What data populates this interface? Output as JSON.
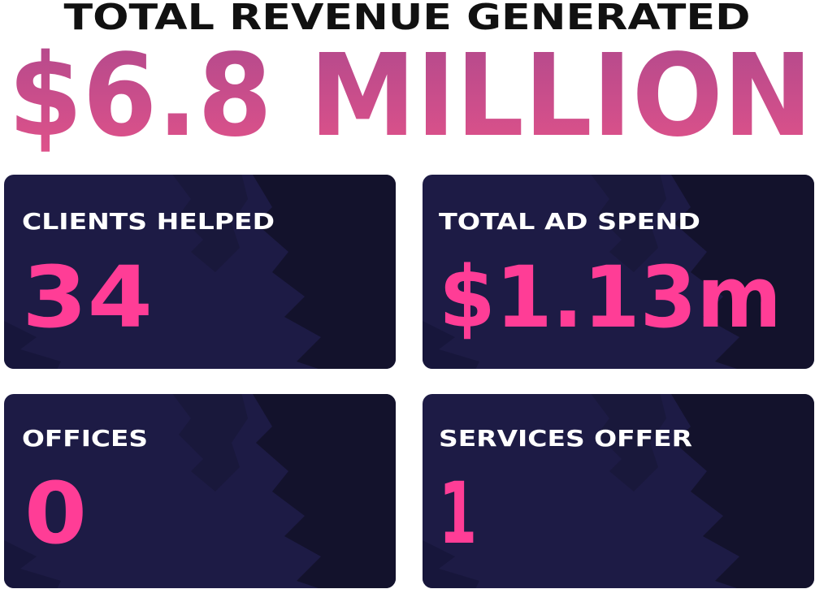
{
  "header": {
    "title": "TOTAL REVENUE GENERATED",
    "amount": "$6.8 MILLION"
  },
  "cards": [
    {
      "label": "CLIENTS HELPED",
      "value": "34"
    },
    {
      "label": "TOTAL AD SPEND",
      "value": "$1.13m"
    },
    {
      "label": "OFFICES",
      "value": "0"
    },
    {
      "label": "SERVICES OFFER",
      "value": "1"
    }
  ]
}
